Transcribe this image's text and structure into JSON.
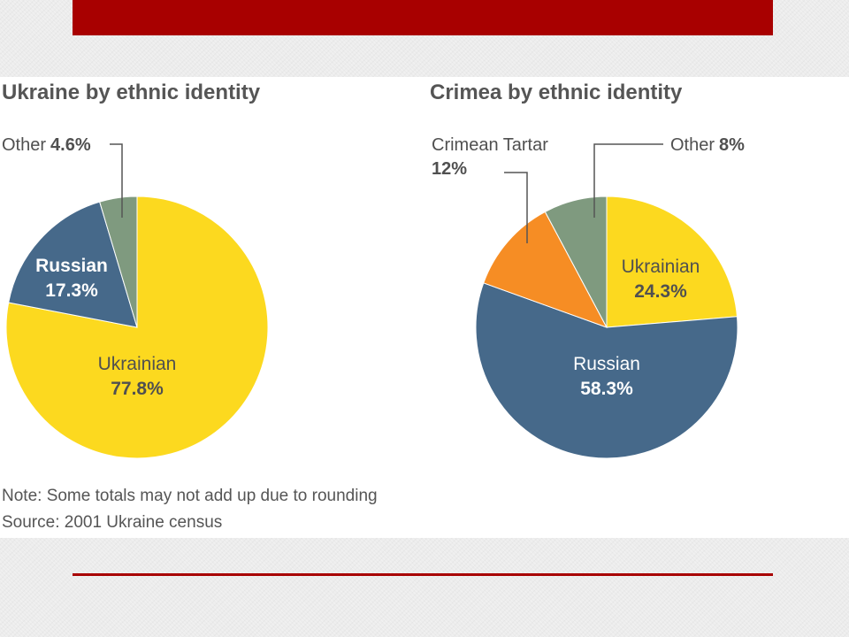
{
  "chart_data": [
    {
      "type": "pie",
      "title": "Ukraine by ethnic identity",
      "slices": [
        {
          "label": "Ukrainian",
          "value": 77.8,
          "value_text": "77.8%",
          "color": "#fcd91f",
          "label_color": "#505050"
        },
        {
          "label": "Russian",
          "value": 17.3,
          "value_text": "17.3%",
          "color": "#46698a",
          "label_color": "#ffffff"
        },
        {
          "label": "Other",
          "value": 4.6,
          "value_text": "4.6%",
          "color": "#7f9a7f",
          "label_color": "#505050"
        }
      ]
    },
    {
      "type": "pie",
      "title": "Crimea by ethnic identity",
      "slices": [
        {
          "label": "Ukrainian",
          "value": 24.3,
          "value_text": "24.3%",
          "color": "#fcd91f",
          "label_color": "#505050"
        },
        {
          "label": "Russian",
          "value": 58.3,
          "value_text": "58.3%",
          "color": "#46698a",
          "label_color": "#ffffff"
        },
        {
          "label": "Crimean Tartar",
          "value": 12,
          "value_text": "12%",
          "color": "#f68d24",
          "label_color": "#505050"
        },
        {
          "label": "Other",
          "value": 8,
          "value_text": "8%",
          "color": "#7f9a7f",
          "label_color": "#505050"
        }
      ]
    }
  ],
  "footnotes": {
    "note": "Note: Some totals may not add up due to rounding",
    "source": "Source: 2001 Ukraine census"
  },
  "colors": {
    "accent_bar": "#a80000",
    "text": "#505050",
    "leader_line": "#555555"
  }
}
